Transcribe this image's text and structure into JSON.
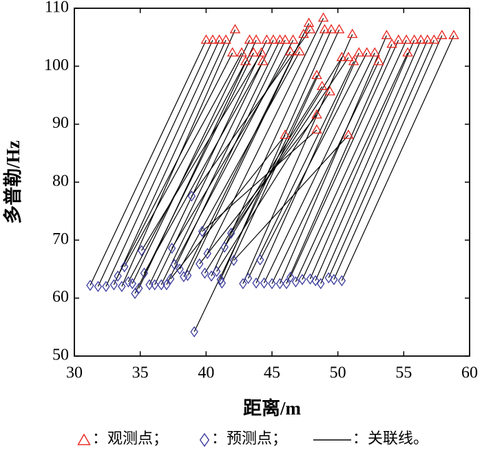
{
  "chart_data": {
    "type": "scatter",
    "x_label": "距离/m",
    "y_label": "多普勒/Hz",
    "xlim": [
      30,
      60
    ],
    "xticks": [
      30,
      35,
      40,
      45,
      50,
      55,
      60
    ],
    "ylim": [
      50,
      110
    ],
    "yticks": [
      50,
      60,
      70,
      80,
      90,
      100,
      110
    ],
    "series": [
      {
        "name": "：观测点；",
        "color": "#e8231c",
        "marker": "triangle",
        "x": [
          40.0,
          40.5,
          41.0,
          41.5,
          42.0,
          42.2,
          42.7,
          43.0,
          43.3,
          43.6,
          43.8,
          44.2,
          44.3,
          44.6,
          45.1,
          45.6,
          46.0,
          46.0,
          46.4,
          46.6,
          47.1,
          47.4,
          47.8,
          47.9,
          48.4,
          48.4,
          48.4,
          48.8,
          48.9,
          49.0,
          49.4,
          49.5,
          50.1,
          50.3,
          50.8,
          50.8,
          51.1,
          51.2,
          51.6,
          52.2,
          52.8,
          53.1,
          53.7,
          54.1,
          54.6,
          55.2,
          55.3,
          55.8,
          56.3,
          56.8,
          57.3,
          57.9,
          58.8
        ],
        "values": [
          104.5,
          104.5,
          104.5,
          104.5,
          102.3,
          106.3,
          102.3,
          100.8,
          104.5,
          102.3,
          104.5,
          102.3,
          100.8,
          104.5,
          104.5,
          104.5,
          104.5,
          88.1,
          102.5,
          104.5,
          102.5,
          105.5,
          107.4,
          106.3,
          98.4,
          91.6,
          89.0,
          96.5,
          108.3,
          106.3,
          95.6,
          106.3,
          106.3,
          101.5,
          101.5,
          88.1,
          105.5,
          100.8,
          102.3,
          102.3,
          102.3,
          100.8,
          105.3,
          103.8,
          104.5,
          104.5,
          102.3,
          104.5,
          104.5,
          104.5,
          104.5,
          105.3,
          105.3
        ]
      },
      {
        "name": "：预测点；",
        "color": "#3b3b9c",
        "marker": "diamond",
        "x": [
          31.2,
          31.8,
          32.4,
          33.0,
          33.3,
          33.6,
          33.8,
          34.1,
          34.4,
          34.6,
          34.9,
          35.1,
          35.3,
          35.7,
          36.1,
          36.6,
          37.0,
          37.3,
          37.4,
          37.6,
          38.0,
          38.3,
          38.6,
          38.9,
          39.1,
          39.5,
          39.7,
          39.9,
          40.1,
          40.4,
          40.8,
          41.1,
          41.2,
          41.4,
          41.9,
          42.1,
          42.8,
          43.2,
          43.8,
          44.1,
          44.4,
          45.0,
          45.6,
          46.1,
          46.4,
          46.8,
          47.3,
          47.9,
          48.3,
          48.7,
          49.3,
          49.7,
          50.3
        ],
        "values": [
          62.2,
          62.0,
          62.0,
          62.3,
          63.8,
          62.0,
          65.4,
          62.8,
          62.5,
          60.8,
          61.7,
          68.2,
          64.3,
          62.3,
          62.3,
          62.3,
          62.3,
          63.3,
          68.6,
          65.8,
          65.0,
          63.7,
          63.9,
          77.6,
          54.2,
          65.9,
          71.5,
          64.3,
          67.7,
          63.8,
          64.6,
          63.2,
          62.6,
          68.8,
          71.2,
          66.5,
          62.5,
          63.4,
          62.6,
          66.6,
          62.6,
          62.5,
          62.5,
          62.5,
          63.6,
          62.8,
          63.2,
          63.3,
          63.0,
          62.5,
          63.5,
          63.2,
          63.0
        ]
      },
      {
        "name": "：关联线。",
        "color": "#000000",
        "marker": "line"
      }
    ]
  }
}
